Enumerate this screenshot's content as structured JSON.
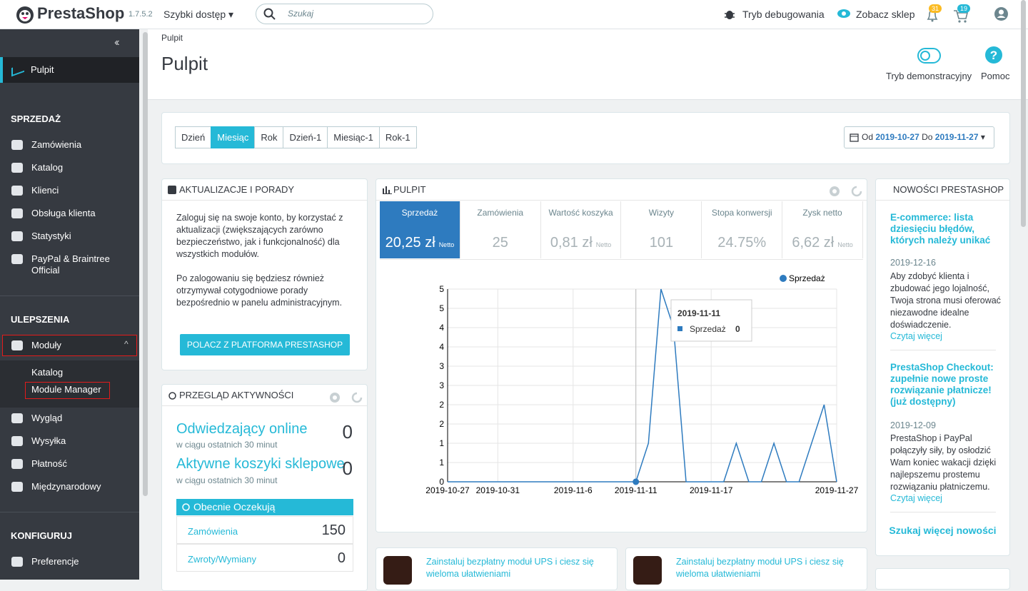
{
  "header": {
    "logo": "PrestaShop",
    "version": "1.7.5.2",
    "quick_access": "Szybki dostęp",
    "search_placeholder": "Szukaj",
    "debug": "Tryb debugowania",
    "view_shop": "Zobacz sklep",
    "notif_orders": "31",
    "notif_customers": "19"
  },
  "sidebar": {
    "top": "Pulpit",
    "sections": [
      {
        "title": "SPRZEDAŻ",
        "items": [
          "Zamówienia",
          "Katalog",
          "Klienci",
          "Obsługa klienta",
          "Statystyki",
          "PayPal & Braintree Official"
        ]
      },
      {
        "title": "ULEPSZENIA",
        "items": [
          "Moduły",
          "Wygląd",
          "Wysyłka",
          "Płatność",
          "Międzynarodowy"
        ],
        "submenu": [
          "Katalog",
          "Module Manager"
        ]
      },
      {
        "title": "KONFIGURUJ",
        "items": [
          "Preferencje"
        ]
      }
    ]
  },
  "page": {
    "breadcrumb": "Pulpit",
    "title": "Pulpit",
    "demo": "Tryb demonstracyjny",
    "help": "Pomoc"
  },
  "period": {
    "buttons": [
      "Dzień",
      "Miesiąc",
      "Rok",
      "Dzień-1",
      "Miesiąc-1",
      "Rok-1"
    ],
    "active": 1,
    "from_label": "Od",
    "from": "2019-10-27",
    "to_label": "Do",
    "to": "2019-11-27"
  },
  "updates": {
    "title": "AKTUALIZACJE I PORADY",
    "p1": "Zaloguj się na swoje konto, by korzystać z aktualizacji (zwiększających zarówno bezpieczeństwo, jak i funkcjonalność) dla wszystkich modułów.",
    "p2": "Po zalogowaniu się będziesz również otrzymywał cotygodniowe porady bezpośrednio w panelu administracyjnym.",
    "button": "POLACZ Z PLATFORMA PRESTASHOP"
  },
  "activity": {
    "title": "PRZEGLĄD AKTYWNOŚCI",
    "online": "Odwiedzający online",
    "online_sub": "w ciągu ostatnich 30 minut",
    "online_value": "0",
    "carts": "Aktywne koszyki sklepowe",
    "carts_sub": "w ciągu ostatnich 30 minut",
    "carts_value": "0",
    "pending": "Obecnie Oczekują",
    "rows": [
      [
        "Zamówienia",
        "150"
      ],
      [
        "Zwroty/Wymiany",
        "0"
      ]
    ]
  },
  "dashboard": {
    "title": "PULPIT",
    "kpis": [
      {
        "label": "Sprzedaż",
        "value": "20,25 zł",
        "suffix": "Netto"
      },
      {
        "label": "Zamówienia",
        "value": "25"
      },
      {
        "label": "Wartość koszyka",
        "value": "0,81 zł",
        "suffix": "Netto"
      },
      {
        "label": "Wizyty",
        "value": "101"
      },
      {
        "label": "Stopa konwersji",
        "value": "24.75%"
      },
      {
        "label": "Zysk netto",
        "value": "6,62 zł",
        "suffix": "Netto"
      }
    ]
  },
  "chart_data": {
    "type": "line",
    "categories": [
      "2019-10-27",
      null,
      null,
      null,
      "2019-10-31",
      null,
      null,
      null,
      null,
      null,
      "2019-11-6",
      null,
      null,
      null,
      null,
      "2019-11-11",
      null,
      null,
      null,
      null,
      null,
      "2019-11-17",
      null,
      null,
      null,
      null,
      null,
      null,
      null,
      null,
      null,
      "2019-11-27"
    ],
    "series": [
      {
        "name": "Sprzedaż",
        "color": "#2e7bbf",
        "values": [
          0,
          0,
          0,
          0,
          0,
          0,
          0,
          0,
          0,
          0,
          0,
          0,
          0,
          0,
          0,
          0,
          1,
          5,
          4,
          0,
          0,
          0,
          0,
          1,
          0,
          0,
          1,
          0,
          0,
          1,
          2,
          0
        ]
      }
    ],
    "ylim": [
      0,
      5
    ],
    "yticks": [
      0,
      {
        "value": 0.5,
        "label": "1"
      },
      1,
      {
        "value": 1.5,
        "label": "2"
      },
      2,
      {
        "value": 2.5,
        "label": "3"
      },
      3,
      {
        "value": 3.5,
        "label": "4"
      },
      4,
      {
        "value": 4.5,
        "label": "5"
      },
      5
    ],
    "grid": true,
    "legend": "top-right",
    "tooltip_index": 15
  },
  "news": {
    "title": "NOWOŚCI PRESTASHOP",
    "items": [
      {
        "title": "E-commerce: lista dziesięciu błędów, których należy unikać",
        "date": "2019-12-16",
        "text": "Aby zdobyć klienta i zbudować jego lojalność, Twoja strona musi oferować niezawodne idealne doświadczenie.",
        "link": "Czytaj więcej"
      },
      {
        "title": "PrestaShop Checkout: zupełnie nowe proste rozwiązanie płatnicze! (już dostępny)",
        "date": "2019-12-09",
        "text": "PrestaShop i PayPal połączyły siły, by osłodzić Wam koniec wakacji dzięki najlepszemu prostemu rozwiązaniu płatniczemu.",
        "link": "Czytaj więcej"
      }
    ],
    "more": "Szukaj więcej nowości"
  },
  "modules": [
    {
      "text": "Zainstaluj bezpłatny moduł UPS i ciesz się wieloma ułatwieniami"
    },
    {
      "text": "Zainstaluj bezpłatny moduł UPS i ciesz się wieloma ułatwieniami"
    }
  ]
}
